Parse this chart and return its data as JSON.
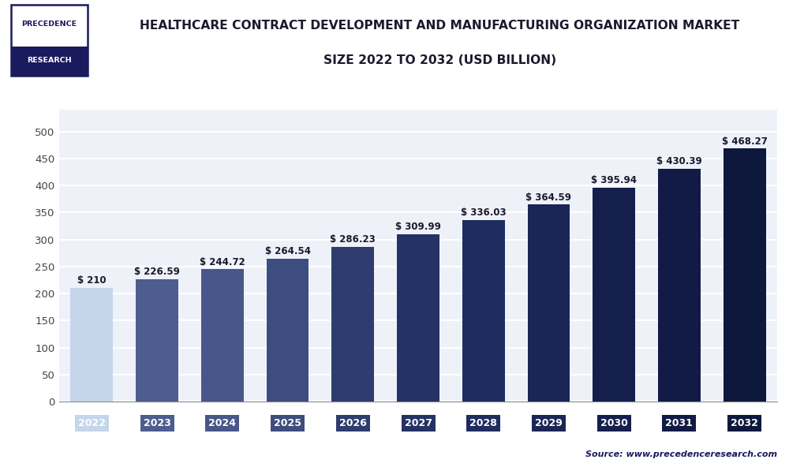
{
  "title_line1": "HEALTHCARE CONTRACT DEVELOPMENT AND MANUFACTURING ORGANIZATION MARKET",
  "title_line2": "SIZE 2022 TO 2032 (USD BILLION)",
  "years": [
    2022,
    2023,
    2024,
    2025,
    2026,
    2027,
    2028,
    2029,
    2030,
    2031,
    2032
  ],
  "values": [
    210,
    226.59,
    244.72,
    264.54,
    286.23,
    309.99,
    336.03,
    364.59,
    395.94,
    430.39,
    468.27
  ],
  "labels": [
    "$ 210",
    "$ 226.59",
    "$ 244.72",
    "$ 264.54",
    "$ 286.23",
    "$ 309.99",
    "$ 336.03",
    "$ 364.59",
    "$ 395.94",
    "$ 430.39",
    "$ 468.27"
  ],
  "bar_colors": [
    "#c5d5ea",
    "#4e5d8f",
    "#485688",
    "#3d4d7e",
    "#2f3d6e",
    "#253265",
    "#1e2c5f",
    "#192656",
    "#141f4d",
    "#111b45",
    "#0e173c"
  ],
  "tick_colors": [
    "#c5d5ea",
    "#4e5d8f",
    "#485688",
    "#3d4d7e",
    "#2f3d6e",
    "#253265",
    "#1e2c5f",
    "#192656",
    "#141f4d",
    "#111b45",
    "#0e173c"
  ],
  "ylim": [
    0,
    540
  ],
  "yticks": [
    0,
    50,
    100,
    150,
    200,
    250,
    300,
    350,
    400,
    450,
    500
  ],
  "background_color": "#ffffff",
  "plot_bg_color": "#eef2f8",
  "grid_color": "#ffffff",
  "source_text": "Source: www.precedenceresearch.com",
  "title_color": "#1a1a2e",
  "logo_text_top": "PRECEDENCE",
  "logo_text_bottom": "RESEARCH",
  "logo_border_color": "#1a1a5e",
  "logo_fill_color": "#1a1a5e",
  "separator_color": "#2e3d6e",
  "bar_label_color": "#1a1a2e",
  "bar_label_fontsize": 8.5,
  "ytick_label_fontsize": 9.5,
  "xtick_label_fontsize": 9
}
